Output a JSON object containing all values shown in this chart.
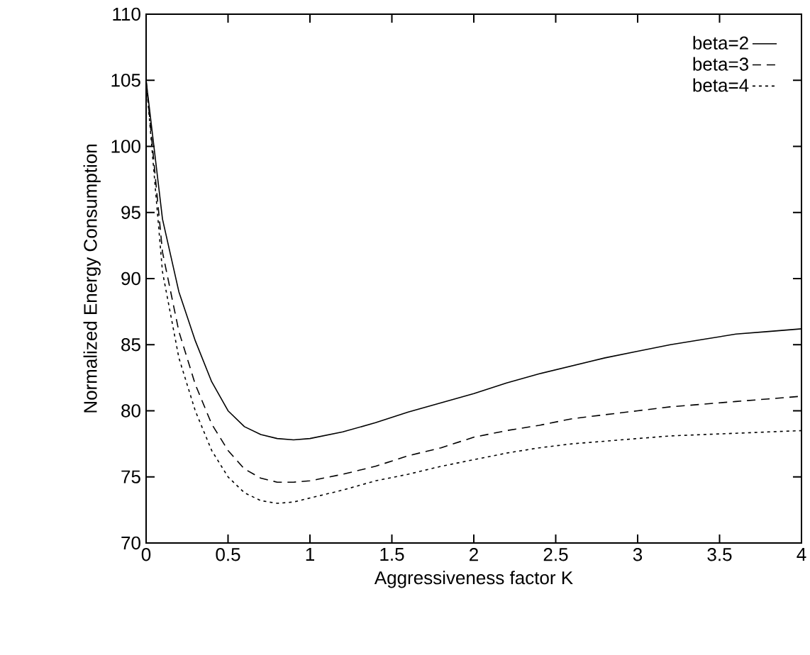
{
  "chart_data": {
    "type": "line",
    "xlabel": "Aggressiveness factor K",
    "ylabel": "Normalized Energy Consumption",
    "xlim": [
      0,
      4
    ],
    "ylim": [
      70,
      110
    ],
    "xticks": [
      0,
      0.5,
      1,
      1.5,
      2,
      2.5,
      3,
      3.5,
      4
    ],
    "yticks": [
      70,
      75,
      80,
      85,
      90,
      95,
      100,
      105,
      110
    ],
    "legend": "top right",
    "grid": false,
    "marker": "none",
    "x": [
      0,
      0.1,
      0.2,
      0.3,
      0.4,
      0.5,
      0.6,
      0.7,
      0.8,
      0.9,
      1.0,
      1.2,
      1.4,
      1.6,
      1.8,
      2.0,
      2.2,
      2.4,
      2.6,
      2.8,
      3.0,
      3.2,
      3.4,
      3.6,
      3.8,
      4.0
    ],
    "series": [
      {
        "name": "beta=2",
        "color": "#000000",
        "line_style": "solid",
        "values": [
          105,
          94.5,
          89,
          85.3,
          82.2,
          80,
          78.8,
          78.2,
          77.9,
          77.8,
          77.9,
          78.4,
          79.1,
          79.9,
          80.6,
          81.3,
          82.1,
          82.8,
          83.4,
          84.0,
          84.5,
          85.0,
          85.4,
          85.8,
          86.0,
          86.2
        ]
      },
      {
        "name": "beta=3",
        "color": "#000000",
        "line_style": "dashed",
        "values": [
          105,
          92,
          86,
          82,
          79,
          77,
          75.6,
          74.9,
          74.6,
          74.6,
          74.7,
          75.2,
          75.8,
          76.6,
          77.2,
          78.0,
          78.5,
          78.9,
          79.4,
          79.7,
          80.0,
          80.3,
          80.5,
          80.7,
          80.9,
          81.1
        ]
      },
      {
        "name": "beta=4",
        "color": "#000000",
        "line_style": "dotted",
        "values": [
          105,
          90.5,
          84,
          80,
          77,
          75,
          73.8,
          73.2,
          73.0,
          73.1,
          73.4,
          74.0,
          74.7,
          75.2,
          75.8,
          76.3,
          76.8,
          77.2,
          77.5,
          77.7,
          77.9,
          78.1,
          78.2,
          78.3,
          78.4,
          78.5
        ]
      }
    ]
  }
}
